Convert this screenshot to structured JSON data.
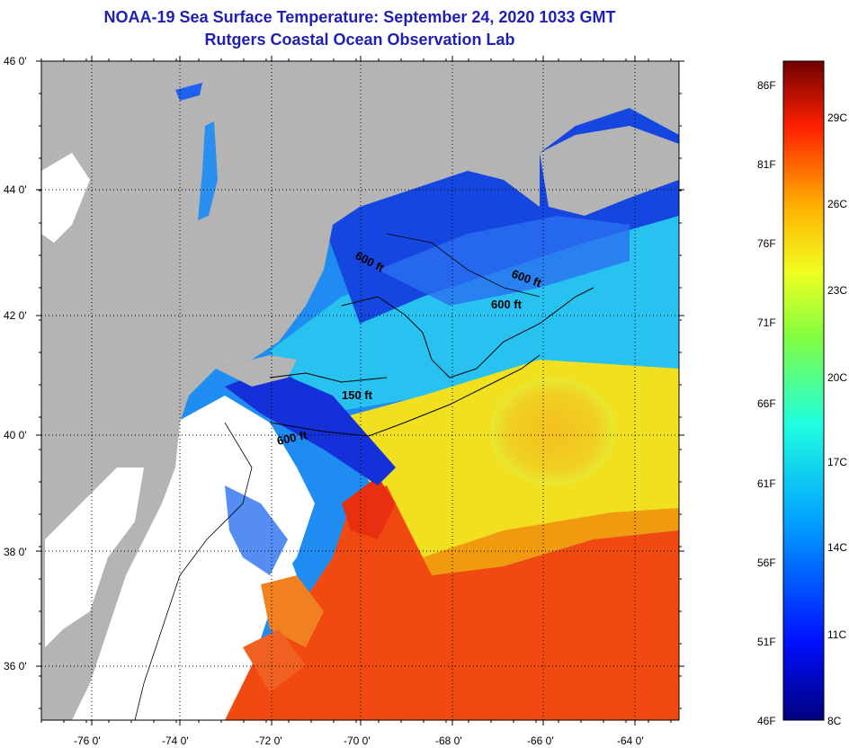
{
  "title": {
    "line1": "NOAA-19 Sea Surface Temperature:  September 24, 2020 1033 GMT",
    "line2": "Rutgers Coastal Ocean Observation Lab"
  },
  "map": {
    "lat_ticks": [
      "46 0'",
      "44 0'",
      "42 0'",
      "40 0'",
      "38 0'",
      "36 0'"
    ],
    "lon_ticks": [
      "-76 0'",
      "-74 0'",
      "-72 0'",
      "-70 0'",
      "-68 0'",
      "-66 0'",
      "-64 0'"
    ],
    "depth_labels": [
      "600 ft",
      "600 ft",
      "600 ft",
      "150 ft",
      "600 ft"
    ],
    "colors": {
      "land": "#b4b4b4",
      "cloud": "#ffffff",
      "cold": "#1030e0",
      "cool": "#20b4f0",
      "warm": "#f0e020",
      "hot": "#f03c10"
    }
  },
  "colorbar": {
    "fahrenheit": [
      "86F",
      "81F",
      "76F",
      "71F",
      "66F",
      "61F",
      "56F",
      "51F",
      "46F"
    ],
    "celsius": [
      "29C",
      "26C",
      "23C",
      "20C",
      "17C",
      "14C",
      "11C",
      "8C"
    ]
  }
}
